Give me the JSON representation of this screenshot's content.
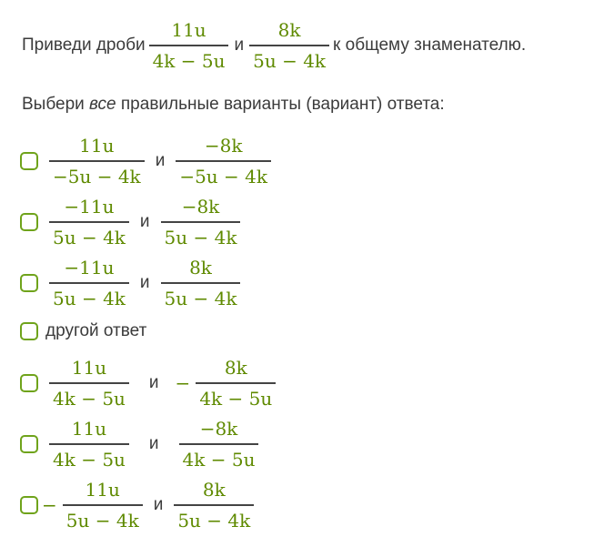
{
  "prompt": {
    "before": "Приведи дроби",
    "frac1": {
      "num": "11u",
      "den": "4k − 5u"
    },
    "conj": "и",
    "frac2": {
      "num": "8k",
      "den": "5u − 4k"
    },
    "after": "к общему знаменателю."
  },
  "instruction": {
    "before": "Выбери",
    "emph": "все",
    "after": "правильные варианты (вариант) ответа:"
  },
  "options": [
    {
      "f1": {
        "num": "11u",
        "den": "−5u − 4k"
      },
      "conj": "и",
      "f2": {
        "num": "−8k",
        "den": "−5u − 4k"
      }
    },
    {
      "f1": {
        "num": "−11u",
        "den": "5u − 4k"
      },
      "conj": "и",
      "f2": {
        "num": "−8k",
        "den": "5u − 4k"
      }
    },
    {
      "f1": {
        "num": "−11u",
        "den": "5u − 4k"
      },
      "conj": "и",
      "f2": {
        "num": "8k",
        "den": "5u − 4k"
      }
    },
    {
      "text": "другой ответ"
    },
    {
      "f1": {
        "num": "11u",
        "den": "4k − 5u"
      },
      "conj": "и",
      "sign2": "−",
      "f2": {
        "num": "8k",
        "den": "4k − 5u"
      }
    },
    {
      "f1": {
        "num": "11u",
        "den": "4k − 5u"
      },
      "conj": "и",
      "f2": {
        "num": "−8k",
        "den": "4k − 5u"
      }
    },
    {
      "sign1": "−",
      "f1": {
        "num": "11u",
        "den": "5u − 4k"
      },
      "conj": "и",
      "f2": {
        "num": "8k",
        "den": "5u − 4k"
      }
    }
  ]
}
